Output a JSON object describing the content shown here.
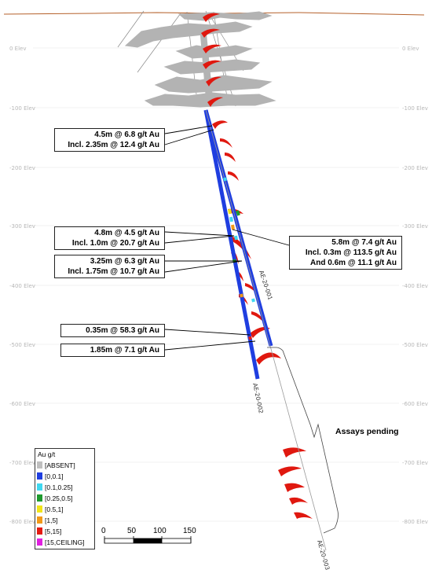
{
  "elevations": [
    "0 Elev",
    "-100 Elev",
    "-200 Elev",
    "-300 Elev",
    "-400 Elev",
    "-500 Elev",
    "-600 Elev",
    "-700 Elev",
    "-800 Elev"
  ],
  "intercepts": {
    "i1": [
      "4.5m @ 6.8 g/t Au",
      "Incl. 2.35m @ 12.4 g/t Au"
    ],
    "i2": [
      "4.8m @ 4.5 g/t Au",
      "Incl. 1.0m @ 20.7 g/t Au"
    ],
    "i3": [
      "5.8m @ 7.4 g/t Au",
      "Incl. 0.3m @ 113.5 g/t Au",
      "And 0.6m @ 11.1 g/t Au"
    ],
    "i4": [
      "3.25m @ 6.3 g/t Au",
      "Incl. 1.75m @ 10.7 g/t Au"
    ],
    "i5": [
      "0.35m @ 58.3 g/t Au"
    ],
    "i6": [
      "1.85m @ 7.1 g/t Au"
    ]
  },
  "holes": [
    "AE-20-001",
    "AE-20-002",
    "AE-20-003"
  ],
  "pending_label": "Assays pending",
  "legend": {
    "title": "Au g/t",
    "items": [
      {
        "label": "[ABSENT]",
        "color": "#bfbfbf"
      },
      {
        "label": "[0,0.1]",
        "color": "#1f3ee0"
      },
      {
        "label": "[0.1,0.25]",
        "color": "#3fd8f0"
      },
      {
        "label": "[0.25,0.5]",
        "color": "#1e9a2e"
      },
      {
        "label": "[0.5,1]",
        "color": "#f2e51a"
      },
      {
        "label": "[1,5]",
        "color": "#f29a18"
      },
      {
        "label": "[5,15]",
        "color": "#e41a12"
      },
      {
        "label": "[15,CEILING]",
        "color": "#e020e0"
      }
    ]
  },
  "scale_bar": {
    "ticks": [
      "0",
      "50",
      "100",
      "150"
    ]
  }
}
